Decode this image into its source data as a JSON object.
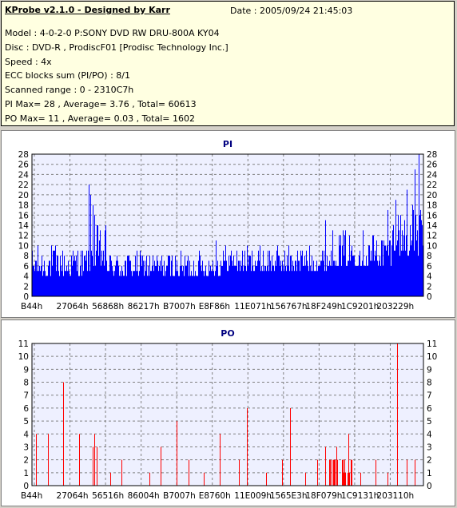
{
  "info": {
    "title": "KProbe v2.1.0 - Designed by Karr",
    "date": "Date : 2005/09/24 21:45:03",
    "lines": [
      "Model : 4-0-2-0 P:SONY    DVD RW DRU-800A  KY04",
      "Disc : DVD-R , ProdiscF01 [Prodisc Technology Inc.]",
      "Speed : 4x",
      "ECC blocks sum (PI/PO) : 8/1",
      "Scanned range : 0 - 2310C7h",
      "PI Max= 28 , Average= 3.76 , Total= 60613",
      "PO Max= 11 , Average= 0.03 , Total= 1602"
    ]
  },
  "chart_data": [
    {
      "type": "bar",
      "title": "PI",
      "color": "#0000ff",
      "ylim": [
        0,
        28
      ],
      "yticks": [
        0,
        2,
        4,
        6,
        8,
        10,
        12,
        14,
        16,
        18,
        20,
        22,
        24,
        26,
        28
      ],
      "xtick_labels": [
        "B44h",
        "27064h",
        "56868h",
        "86217h",
        "B7007h",
        "E8F86h",
        "11E071h",
        "156767h",
        "18F249h",
        "1C9201h",
        "203229h"
      ],
      "grid": true,
      "segments": [
        {
          "from": 0.0,
          "to": 0.14,
          "low": 4,
          "high": 10
        },
        {
          "from": 0.14,
          "to": 0.19,
          "low": 5,
          "high": 14
        },
        {
          "from": 0.19,
          "to": 0.48,
          "low": 4,
          "high": 9
        },
        {
          "from": 0.48,
          "to": 0.76,
          "low": 5,
          "high": 10
        },
        {
          "from": 0.76,
          "to": 0.92,
          "low": 6,
          "high": 13
        },
        {
          "from": 0.92,
          "to": 1.0,
          "low": 8,
          "high": 18
        }
      ],
      "spikes": [
        {
          "pos": 0.145,
          "value": 22
        },
        {
          "pos": 0.15,
          "value": 20
        },
        {
          "pos": 0.155,
          "value": 18
        },
        {
          "pos": 0.16,
          "value": 16
        },
        {
          "pos": 0.165,
          "value": 14
        },
        {
          "pos": 0.47,
          "value": 11
        },
        {
          "pos": 0.75,
          "value": 15
        },
        {
          "pos": 0.91,
          "value": 17
        },
        {
          "pos": 0.93,
          "value": 19
        },
        {
          "pos": 0.96,
          "value": 21
        },
        {
          "pos": 0.98,
          "value": 25
        },
        {
          "pos": 0.99,
          "value": 28
        }
      ]
    },
    {
      "type": "bar",
      "title": "PO",
      "color": "#ff0000",
      "ylim": [
        0,
        11
      ],
      "yticks": [
        0,
        1,
        2,
        3,
        4,
        5,
        6,
        7,
        8,
        9,
        10,
        11
      ],
      "xtick_labels": [
        "B44h",
        "27064h",
        "56516h",
        "86004h",
        "B7007h",
        "E8760h",
        "11E009h",
        "1565E3h",
        "18F079h",
        "1C9131h",
        "203110h"
      ],
      "grid": true,
      "spikes": [
        {
          "pos": 0.01,
          "value": 4
        },
        {
          "pos": 0.04,
          "value": 4
        },
        {
          "pos": 0.08,
          "value": 8
        },
        {
          "pos": 0.12,
          "value": 4
        },
        {
          "pos": 0.155,
          "value": 3
        },
        {
          "pos": 0.16,
          "value": 4
        },
        {
          "pos": 0.165,
          "value": 3
        },
        {
          "pos": 0.2,
          "value": 1
        },
        {
          "pos": 0.23,
          "value": 2
        },
        {
          "pos": 0.3,
          "value": 1
        },
        {
          "pos": 0.33,
          "value": 3
        },
        {
          "pos": 0.37,
          "value": 5
        },
        {
          "pos": 0.4,
          "value": 2
        },
        {
          "pos": 0.44,
          "value": 1
        },
        {
          "pos": 0.48,
          "value": 4
        },
        {
          "pos": 0.53,
          "value": 2
        },
        {
          "pos": 0.55,
          "value": 6
        },
        {
          "pos": 0.6,
          "value": 1
        },
        {
          "pos": 0.64,
          "value": 2
        },
        {
          "pos": 0.66,
          "value": 6
        },
        {
          "pos": 0.7,
          "value": 1
        },
        {
          "pos": 0.73,
          "value": 2
        },
        {
          "pos": 0.75,
          "value": 3
        },
        {
          "pos": 0.77,
          "value": 2
        },
        {
          "pos": 0.78,
          "value": 3
        },
        {
          "pos": 0.8,
          "value": 2
        },
        {
          "pos": 0.81,
          "value": 4
        },
        {
          "pos": 0.84,
          "value": 1
        },
        {
          "pos": 0.88,
          "value": 2
        },
        {
          "pos": 0.91,
          "value": 1
        },
        {
          "pos": 0.935,
          "value": 11
        },
        {
          "pos": 0.96,
          "value": 2
        },
        {
          "pos": 0.98,
          "value": 2
        }
      ],
      "clusters": [
        {
          "from": 0.76,
          "to": 0.82,
          "max": 2
        }
      ]
    }
  ]
}
